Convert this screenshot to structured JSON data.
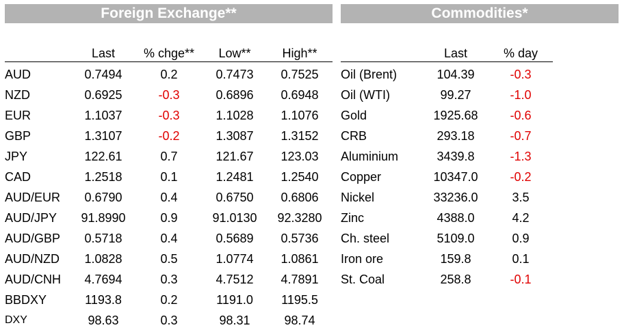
{
  "fx": {
    "title": "Foreign Exchange**",
    "headers": [
      "Last",
      "% chge**",
      "Low**",
      "High**"
    ],
    "rows": [
      {
        "name": "AUD",
        "last": "0.7494",
        "chg": "0.2",
        "low": "0.7473",
        "high": "0.7525"
      },
      {
        "name": "NZD",
        "last": "0.6925",
        "chg": "-0.3",
        "low": "0.6896",
        "high": "0.6948"
      },
      {
        "name": "EUR",
        "last": "1.1037",
        "chg": "-0.3",
        "low": "1.1028",
        "high": "1.1076"
      },
      {
        "name": "GBP",
        "last": "1.3107",
        "chg": "-0.2",
        "low": "1.3087",
        "high": "1.3152"
      },
      {
        "name": "JPY",
        "last": "122.61",
        "chg": "0.7",
        "low": "121.67",
        "high": "123.03"
      },
      {
        "name": "CAD",
        "last": "1.2518",
        "chg": "0.1",
        "low": "1.2481",
        "high": "1.2540"
      },
      {
        "name": "AUD/EUR",
        "last": "0.6790",
        "chg": "0.4",
        "low": "0.6750",
        "high": "0.6806"
      },
      {
        "name": "AUD/JPY",
        "last": "91.8990",
        "chg": "0.9",
        "low": "91.0130",
        "high": "92.3280"
      },
      {
        "name": "AUD/GBP",
        "last": "0.5718",
        "chg": "0.4",
        "low": "0.5689",
        "high": "0.5736"
      },
      {
        "name": "AUD/NZD",
        "last": "1.0828",
        "chg": "0.5",
        "low": "1.0774",
        "high": "1.0861"
      },
      {
        "name": "AUD/CNH",
        "last": "4.7694",
        "chg": "0.3",
        "low": "4.7512",
        "high": "4.7891"
      },
      {
        "name": "BBDXY",
        "last": "1193.8",
        "chg": "0.2",
        "low": "1191.0",
        "high": "1195.5"
      },
      {
        "name": "DXY",
        "last": "98.63",
        "chg": "0.3",
        "low": "98.31",
        "high": "98.74"
      }
    ]
  },
  "commodities": {
    "title": "Commodities*",
    "headers": [
      "Last",
      "% day"
    ],
    "rows": [
      {
        "name": "Oil (Brent)",
        "last": "104.39",
        "day": "-0.3"
      },
      {
        "name": "Oil (WTI)",
        "last": "99.27",
        "day": "-1.0"
      },
      {
        "name": "Gold",
        "last": "1925.68",
        "day": "-0.6"
      },
      {
        "name": "CRB",
        "last": "293.18",
        "day": "-0.7"
      },
      {
        "name": "Aluminium",
        "last": "3439.8",
        "day": "-1.3"
      },
      {
        "name": "Copper",
        "last": "10347.0",
        "day": "-0.2"
      },
      {
        "name": "Nickel",
        "last": "33236.0",
        "day": "3.5"
      },
      {
        "name": "Zinc",
        "last": "4388.0",
        "day": "4.2"
      },
      {
        "name": "Ch. steel",
        "last": "5109.0",
        "day": "0.9"
      },
      {
        "name": "Iron ore",
        "last": "159.8",
        "day": "0.1"
      },
      {
        "name": "St. Coal",
        "last": "258.8",
        "day": "-0.1"
      }
    ]
  },
  "colors": {
    "banner_bg": "#b3b3b3",
    "negative": "#e00000"
  }
}
